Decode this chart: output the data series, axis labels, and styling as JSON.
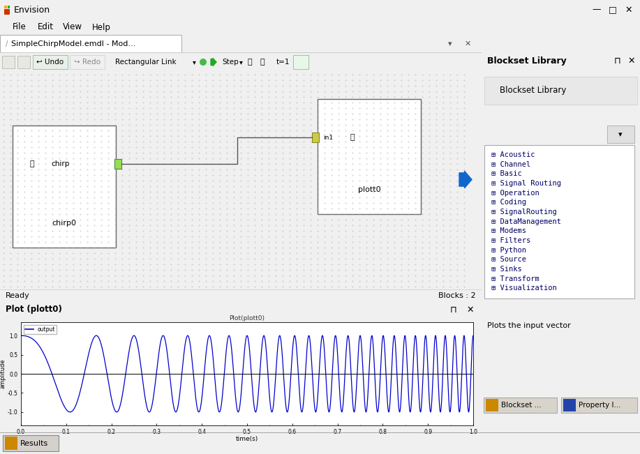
{
  "title_bar": "Envision",
  "tab_title": "SimpleChirpModel.emdl - Mod...",
  "win_bg": "#f0f0f0",
  "titlebar_bg": "#f0f0f0",
  "canvas_bg": "#dcdcdc",
  "dot_color": "#b8b8c8",
  "block_bg": "#ffffff",
  "chirp_label": "chirp0",
  "plott_label": "plott0",
  "status_left": "Ready",
  "status_right": "Blocks : 2",
  "right_title": "Blockset Library",
  "right_sub": "Blockset Library",
  "bottom_text": "Plots the input vector",
  "plot_panel_title": "Plot (plott0)",
  "plot_inner_title": "Plot(plott0)",
  "plot_legend": "output",
  "plot_xlabel": "time(s)",
  "plot_ylabel": "amplitude",
  "plot_xlim": [
    0.0,
    1.0
  ],
  "plot_ylim": [
    -1.35,
    1.35
  ],
  "plot_xticks": [
    0.0,
    0.1,
    0.2,
    0.3,
    0.4,
    0.5,
    0.6,
    0.7,
    0.8,
    0.9,
    1.0
  ],
  "plot_yticks": [
    -1.0,
    -0.5,
    0.0,
    0.5,
    1.0
  ],
  "chirp_f0": 2.0,
  "chirp_f1": 50.0,
  "chirp_duration": 1.0,
  "line_color": "#0000cc",
  "line_width": 0.9,
  "plot_bg": "#ffffff",
  "menu_items": [
    "File",
    "Edit",
    "View",
    "Help"
  ],
  "library_items": [
    "Acoustic",
    "Channel",
    "Basic",
    "Signal Routing",
    "Operation",
    "Coding",
    "SignalRouting",
    "DataManagement",
    "Modems",
    "Filters",
    "Python",
    "Source",
    "Sinks",
    "Transform",
    "Visualization"
  ],
  "lib_item_colors": [
    "#000080",
    "#000080",
    "#000080",
    "#000080",
    "#000080",
    "#000080",
    "#000080",
    "#000080",
    "#000080",
    "#000080",
    "#000080",
    "#000080",
    "#000080",
    "#000080",
    "#000080"
  ],
  "panel_header_bg": "#c8c8d0",
  "right_panel_bg": "#f0f0f0",
  "taskbar_bg": "#c8c8d0",
  "scrollbar_bg": "#e0e0e0"
}
